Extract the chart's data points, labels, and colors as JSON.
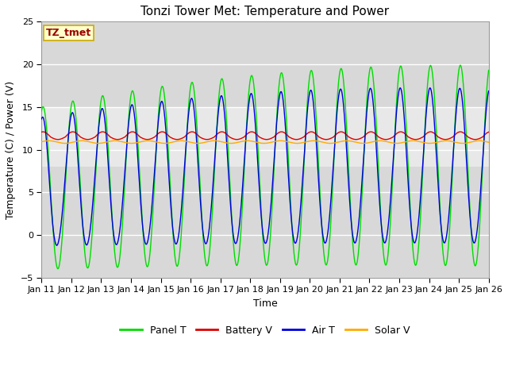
{
  "title": "Tonzi Tower Met: Temperature and Power",
  "xlabel": "Time",
  "ylabel": "Temperature (C) / Power (V)",
  "xlim_days": [
    11,
    26
  ],
  "ylim": [
    -5,
    25
  ],
  "yticks": [
    -5,
    0,
    5,
    10,
    15,
    20,
    25
  ],
  "xtick_labels": [
    "Jan 11",
    "Jan 12",
    "Jan 13",
    "Jan 14",
    "Jan 15",
    "Jan 16",
    "Jan 17",
    "Jan 18",
    "Jan 19",
    "Jan 20",
    "Jan 21",
    "Jan 22",
    "Jan 23",
    "Jan 24",
    "Jan 25",
    "Jan 26"
  ],
  "annotation_text": "TZ_tmet",
  "annotation_color": "#990000",
  "annotation_bg": "#FFFFCC",
  "annotation_border": "#CCAA00",
  "bg_inner": "#D8D8D8",
  "bg_band": "#E8E8E8",
  "bg_outer": "#FFFFFF",
  "colors": {
    "panel_t": "#00DD00",
    "battery_v": "#DD0000",
    "air_t": "#0000DD",
    "solar_v": "#FFAA00"
  },
  "legend_labels": [
    "Panel T",
    "Battery V",
    "Air T",
    "Solar V"
  ],
  "title_fontsize": 11,
  "axis_fontsize": 9,
  "tick_fontsize": 8,
  "legend_fontsize": 9,
  "linewidth": 1.0
}
